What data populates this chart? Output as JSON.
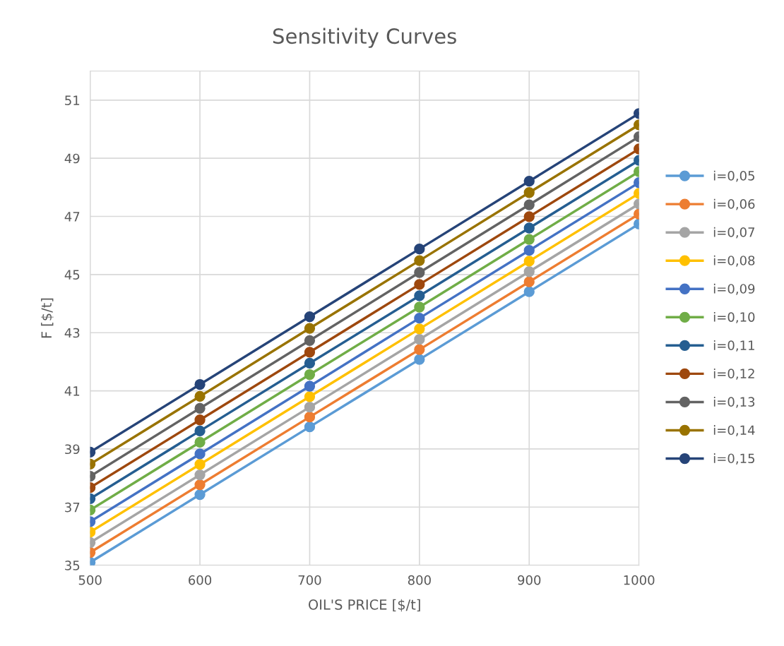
{
  "chart_data": {
    "type": "line",
    "title": "Sensitivity Curves",
    "xlabel": "OIL'S PRICE [$/t]",
    "ylabel": "F [$/t]",
    "x": [
      500,
      600,
      700,
      800,
      900,
      1000
    ],
    "xlim": [
      500,
      1000
    ],
    "xticks": [
      500,
      600,
      700,
      800,
      900,
      1000
    ],
    "ylim": [
      35,
      52
    ],
    "yticks": [
      35,
      37,
      39,
      41,
      43,
      45,
      47,
      49,
      51
    ],
    "grid": true,
    "legend": "right",
    "marker": "circle",
    "line_style": "solid",
    "series": [
      {
        "name": "i=0,05",
        "color": "#5b9bd5",
        "values": [
          35.1,
          37.43,
          39.76,
          42.08,
          44.41,
          46.74
        ]
      },
      {
        "name": "i=0,06",
        "color": "#ed7d31",
        "values": [
          35.44,
          37.77,
          40.1,
          42.42,
          44.75,
          47.08
        ]
      },
      {
        "name": "i=0,07",
        "color": "#a5a5a5",
        "values": [
          35.78,
          38.11,
          40.44,
          42.77,
          45.1,
          47.43
        ]
      },
      {
        "name": "i=0,08",
        "color": "#ffc000",
        "values": [
          36.14,
          38.47,
          40.8,
          43.13,
          45.46,
          47.79
        ]
      },
      {
        "name": "i=0,09",
        "color": "#4472c4",
        "values": [
          36.5,
          38.83,
          41.16,
          43.5,
          45.83,
          48.16
        ]
      },
      {
        "name": "i=0,10",
        "color": "#70ad47",
        "values": [
          36.9,
          39.23,
          41.56,
          43.88,
          46.21,
          48.54
        ]
      },
      {
        "name": "i=0,11",
        "color": "#255e91",
        "values": [
          37.29,
          39.62,
          41.95,
          44.27,
          46.6,
          48.93
        ]
      },
      {
        "name": "i=0,12",
        "color": "#9e480e",
        "values": [
          37.67,
          40.0,
          42.33,
          44.66,
          46.99,
          49.32
        ]
      },
      {
        "name": "i=0,13",
        "color": "#636363",
        "values": [
          38.06,
          40.4,
          42.73,
          45.07,
          47.4,
          49.74
        ]
      },
      {
        "name": "i=0,14",
        "color": "#997300",
        "values": [
          38.48,
          40.81,
          43.15,
          45.48,
          47.82,
          50.15
        ]
      },
      {
        "name": "i=0,15",
        "color": "#264478",
        "values": [
          38.89,
          41.22,
          43.55,
          45.88,
          48.21,
          50.54
        ]
      }
    ]
  }
}
